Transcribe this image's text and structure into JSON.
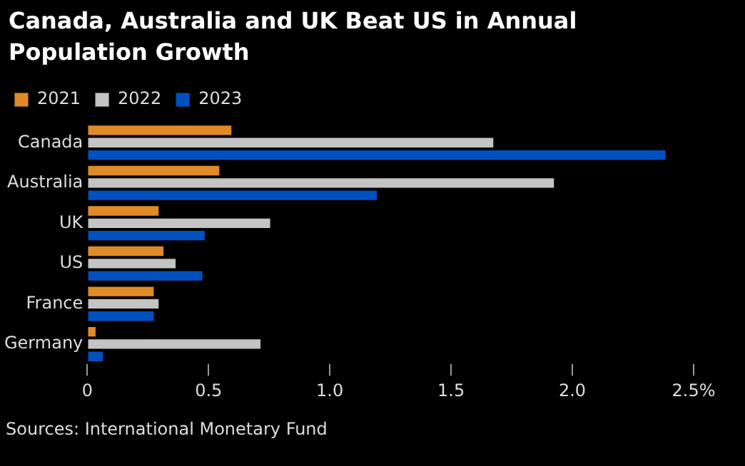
{
  "chart_data": {
    "type": "bar",
    "orientation": "horizontal",
    "title": "Canada, Australia and UK Beat US in Annual Population Growth",
    "categories": [
      "Canada",
      "Australia",
      "UK",
      "US",
      "France",
      "Germany"
    ],
    "series": [
      {
        "name": "2021",
        "color": "#e08b27",
        "values": [
          0.6,
          0.55,
          0.3,
          0.32,
          0.28,
          0.04
        ]
      },
      {
        "name": "2022",
        "color": "#c4c4c4",
        "values": [
          1.68,
          1.93,
          0.76,
          0.37,
          0.3,
          0.72
        ]
      },
      {
        "name": "2023",
        "color": "#0051c0",
        "values": [
          2.39,
          1.2,
          0.49,
          0.48,
          0.28,
          0.07
        ]
      }
    ],
    "xlim": [
      0,
      2.5
    ],
    "xticks": [
      0,
      0.5,
      {
        "value": 1,
        "label": "1.0"
      },
      1.5,
      {
        "value": 2,
        "label": "2.0"
      },
      {
        "value": 2.5,
        "label": "2.5%"
      }
    ],
    "grid": false,
    "legend": "top left",
    "annotations": [
      "Sources: International Monetary Fund"
    ]
  }
}
